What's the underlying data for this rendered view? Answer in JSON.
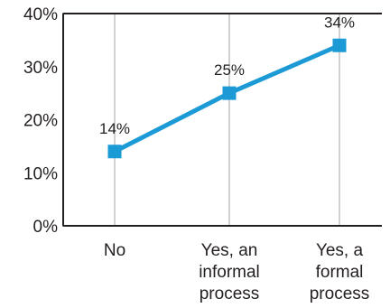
{
  "chart_data": {
    "type": "line",
    "title": "",
    "xlabel": "",
    "ylabel": "",
    "categories": [
      [
        "No"
      ],
      [
        "Yes, an",
        "informal",
        "process"
      ],
      [
        "Yes, a",
        "formal",
        "process"
      ]
    ],
    "series": [
      {
        "values": [
          14,
          25,
          34
        ],
        "data_labels": [
          "14%",
          "25%",
          "34%"
        ],
        "color": "#1b9ad6"
      }
    ],
    "ylim": [
      0,
      40
    ],
    "y_ticks": [
      0,
      10,
      20,
      30,
      40
    ],
    "y_tick_labels": [
      "0%",
      "10%",
      "20%",
      "30%",
      "40%"
    ],
    "grid": "vertical",
    "gridline_color": "#b3b3b3",
    "axis_color": "#231f20",
    "legend": "none"
  }
}
